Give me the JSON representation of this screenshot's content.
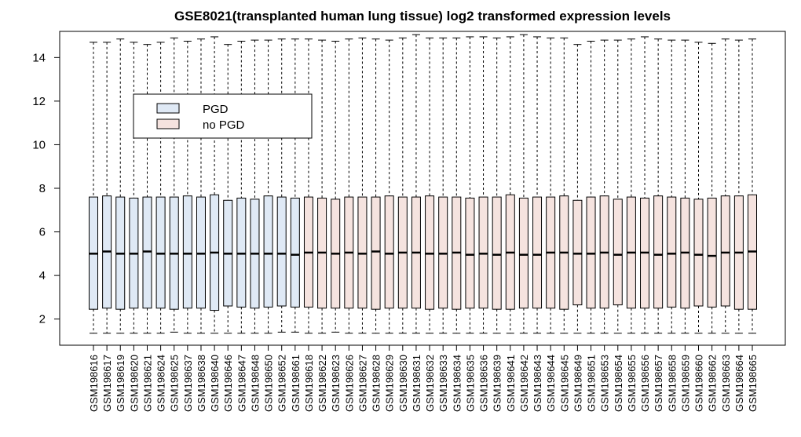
{
  "chart_data": {
    "type": "boxplot",
    "title": "GSE8021(transplanted human lung tissue) log2 transformed expression levels",
    "xlabel": "",
    "ylabel": "",
    "ylim": [
      0.8,
      15.2
    ],
    "yticks": [
      2,
      4,
      6,
      8,
      10,
      12,
      14
    ],
    "grid": false,
    "legend": {
      "placement": "top-left",
      "entries": [
        {
          "label": "PGD",
          "color": "#dfe9f5"
        },
        {
          "label": "no PGD",
          "color": "#f5e3df"
        }
      ]
    },
    "categories": [
      "GSM198616",
      "GSM198617",
      "GSM198619",
      "GSM198620",
      "GSM198621",
      "GSM198624",
      "GSM198625",
      "GSM198637",
      "GSM198638",
      "GSM198640",
      "GSM198646",
      "GSM198647",
      "GSM198648",
      "GSM198650",
      "GSM198652",
      "GSM198661",
      "GSM198618",
      "GSM198622",
      "GSM198623",
      "GSM198626",
      "GSM198627",
      "GSM198628",
      "GSM198629",
      "GSM198630",
      "GSM198631",
      "GSM198632",
      "GSM198633",
      "GSM198634",
      "GSM198635",
      "GSM198636",
      "GSM198639",
      "GSM198641",
      "GSM198642",
      "GSM198643",
      "GSM198644",
      "GSM198645",
      "GSM198649",
      "GSM198651",
      "GSM198653",
      "GSM198654",
      "GSM198655",
      "GSM198656",
      "GSM198657",
      "GSM198658",
      "GSM198659",
      "GSM198660",
      "GSM198662",
      "GSM198663",
      "GSM198664",
      "GSM198665"
    ],
    "groups": [
      "PGD",
      "PGD",
      "PGD",
      "PGD",
      "PGD",
      "PGD",
      "PGD",
      "PGD",
      "PGD",
      "PGD",
      "PGD",
      "PGD",
      "PGD",
      "PGD",
      "PGD",
      "PGD",
      "no PGD",
      "no PGD",
      "no PGD",
      "no PGD",
      "no PGD",
      "no PGD",
      "no PGD",
      "no PGD",
      "no PGD",
      "no PGD",
      "no PGD",
      "no PGD",
      "no PGD",
      "no PGD",
      "no PGD",
      "no PGD",
      "no PGD",
      "no PGD",
      "no PGD",
      "no PGD",
      "no PGD",
      "no PGD",
      "no PGD",
      "no PGD",
      "no PGD",
      "no PGD",
      "no PGD",
      "no PGD",
      "no PGD",
      "no PGD",
      "no PGD",
      "no PGD",
      "no PGD",
      "no PGD"
    ],
    "whisker_low": [
      1.35,
      1.35,
      1.35,
      1.35,
      1.35,
      1.35,
      1.4,
      1.35,
      1.35,
      1.35,
      1.35,
      1.35,
      1.35,
      1.35,
      1.4,
      1.4,
      1.35,
      1.35,
      1.4,
      1.35,
      1.35,
      1.35,
      1.35,
      1.35,
      1.35,
      1.35,
      1.35,
      1.35,
      1.35,
      1.35,
      1.35,
      1.35,
      1.35,
      1.35,
      1.35,
      1.35,
      1.35,
      1.35,
      1.35,
      1.35,
      1.35,
      1.35,
      1.35,
      1.35,
      1.35,
      1.35,
      1.35,
      1.35,
      1.35,
      1.35
    ],
    "q1": [
      2.45,
      2.5,
      2.45,
      2.5,
      2.5,
      2.5,
      2.45,
      2.5,
      2.5,
      2.4,
      2.6,
      2.55,
      2.5,
      2.55,
      2.6,
      2.55,
      2.55,
      2.5,
      2.5,
      2.5,
      2.5,
      2.45,
      2.5,
      2.5,
      2.5,
      2.45,
      2.5,
      2.45,
      2.5,
      2.5,
      2.45,
      2.45,
      2.5,
      2.5,
      2.5,
      2.45,
      2.65,
      2.5,
      2.5,
      2.65,
      2.5,
      2.5,
      2.5,
      2.55,
      2.5,
      2.6,
      2.55,
      2.6,
      2.45,
      2.45
    ],
    "median": [
      5.0,
      5.1,
      5.0,
      5.0,
      5.1,
      5.0,
      5.0,
      5.0,
      5.0,
      5.05,
      5.0,
      5.0,
      5.0,
      5.0,
      5.0,
      4.95,
      5.05,
      5.05,
      5.0,
      5.05,
      5.0,
      5.1,
      5.0,
      5.05,
      5.05,
      5.0,
      5.0,
      5.05,
      4.95,
      5.0,
      4.95,
      5.05,
      4.95,
      4.95,
      5.05,
      5.05,
      5.0,
      5.0,
      5.05,
      4.95,
      5.05,
      5.05,
      4.95,
      5.0,
      5.05,
      4.95,
      4.9,
      5.05,
      5.05,
      5.1
    ],
    "q3": [
      7.6,
      7.65,
      7.6,
      7.55,
      7.6,
      7.6,
      7.6,
      7.65,
      7.6,
      7.7,
      7.45,
      7.55,
      7.5,
      7.65,
      7.6,
      7.55,
      7.6,
      7.55,
      7.5,
      7.6,
      7.6,
      7.6,
      7.65,
      7.6,
      7.6,
      7.65,
      7.6,
      7.6,
      7.55,
      7.6,
      7.6,
      7.7,
      7.55,
      7.6,
      7.6,
      7.65,
      7.45,
      7.6,
      7.65,
      7.5,
      7.6,
      7.55,
      7.65,
      7.6,
      7.55,
      7.5,
      7.55,
      7.65,
      7.65,
      7.7
    ],
    "whisker_high": [
      14.7,
      14.7,
      14.85,
      14.7,
      14.6,
      14.7,
      14.9,
      14.75,
      14.85,
      14.95,
      14.6,
      14.75,
      14.8,
      14.8,
      14.85,
      14.85,
      14.85,
      14.8,
      14.75,
      14.85,
      14.9,
      14.85,
      14.8,
      14.9,
      15.05,
      14.9,
      14.9,
      14.9,
      14.95,
      14.95,
      14.9,
      14.95,
      15.05,
      14.95,
      14.9,
      14.9,
      14.6,
      14.75,
      14.8,
      14.8,
      14.85,
      14.95,
      14.85,
      14.8,
      14.8,
      14.7,
      14.65,
      14.85,
      14.8,
      14.85
    ]
  }
}
